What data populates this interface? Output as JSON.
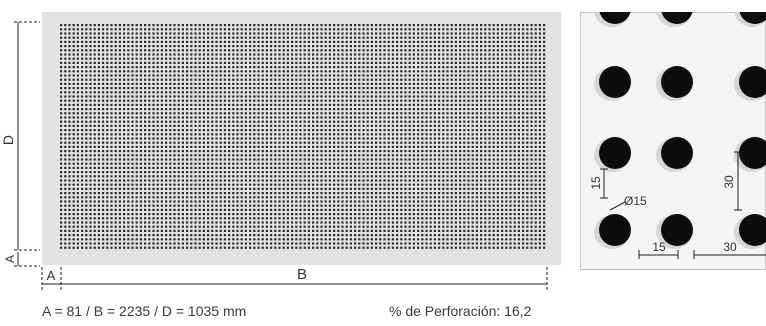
{
  "sheet": {
    "dimension_labels": {
      "a_left": "A",
      "a_bottom": "A",
      "b": "B",
      "d": "D"
    },
    "colors": {
      "plate": "#e2e2e2",
      "hole": "#2a2a2a",
      "dim_line": "#1e1e1e"
    }
  },
  "detail": {
    "labels": {
      "diameter": "Ø15",
      "vertical_small": "15",
      "horizontal_small": "15",
      "vertical_pitch": "30",
      "horizontal_pitch": "30"
    },
    "colors": {
      "background": "#f4f4f4",
      "hole": "#0d0d0d",
      "dim_line": "#1e1e1e"
    }
  },
  "captions": {
    "dimensions": "A = 81 / B = 2235 / D = 1035 mm",
    "perforation": "% de Perforación: 16,2"
  }
}
